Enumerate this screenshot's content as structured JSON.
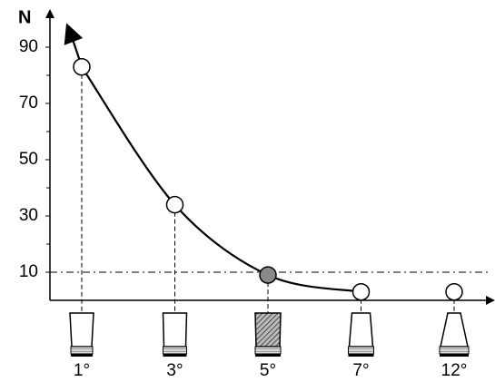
{
  "chart_data": {
    "type": "line",
    "y_label": "N",
    "categories": [
      "1°",
      "3°",
      "5°",
      "7°",
      "12°"
    ],
    "values": [
      83,
      34,
      9,
      3,
      3
    ],
    "curve_points": 4,
    "point_colors": [
      "#ffffff",
      "#ffffff",
      "#8a8a8a",
      "#ffffff",
      "#ffffff"
    ],
    "ylim": [
      0,
      100
    ],
    "yticks": [
      10,
      30,
      50,
      70,
      90
    ],
    "minor_yticks": [
      20,
      40,
      60,
      80
    ],
    "reference_line": 10,
    "color": "#000000"
  }
}
